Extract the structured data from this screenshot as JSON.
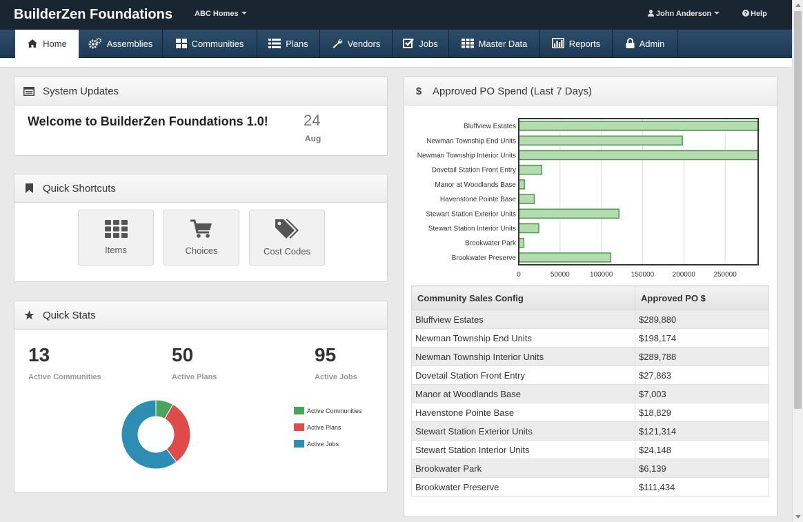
{
  "app": {
    "title": "BuilderZen Foundations"
  },
  "header": {
    "company": "ABC Homes",
    "user": "John Anderson",
    "help": "Help"
  },
  "nav": [
    {
      "label": "Home",
      "icon": "home-icon"
    },
    {
      "label": "Assemblies",
      "icon": "cogs-icon"
    },
    {
      "label": "Communities",
      "icon": "grid-icon"
    },
    {
      "label": "Plans",
      "icon": "list-icon"
    },
    {
      "label": "Vendors",
      "icon": "wrench-icon"
    },
    {
      "label": "Jobs",
      "icon": "check-icon"
    },
    {
      "label": "Master Data",
      "icon": "table-icon"
    },
    {
      "label": "Reports",
      "icon": "bar-chart-icon"
    },
    {
      "label": "Admin",
      "icon": "lock-icon"
    }
  ],
  "system_updates": {
    "title": "System Updates",
    "message": "Welcome to BuilderZen Foundations 1.0!",
    "day": "24",
    "month": "Aug"
  },
  "shortcuts": {
    "title": "Quick Shortcuts",
    "items": [
      {
        "label": "Items",
        "icon": "grid-icon"
      },
      {
        "label": "Choices",
        "icon": "cart-icon"
      },
      {
        "label": "Cost Codes",
        "icon": "tags-icon"
      }
    ]
  },
  "stats": {
    "title": "Quick Stats",
    "items": [
      {
        "value": "13",
        "label": "Active Communities",
        "color": "#4aa55a"
      },
      {
        "value": "50",
        "label": "Active Plans",
        "color": "#de4b4b"
      },
      {
        "value": "95",
        "label": "Active Jobs",
        "color": "#2d8db3"
      }
    ]
  },
  "po_panel": {
    "title": "Approved PO Spend (Last 7 Days)"
  },
  "chart_data": {
    "type": "bar",
    "orientation": "horizontal",
    "categories": [
      "Bluffview Estates",
      "Newman Township End Units",
      "Newman Township Interior Units",
      "Dovetail Station Front Entry",
      "Manor at Woodlands Base",
      "Havenstone Pointe Base",
      "Stewart Station Exterior Units",
      "Stewart Station Interior Units",
      "Brookwater Park",
      "Brookwater Preserve"
    ],
    "values": [
      289880,
      198174,
      289788,
      27863,
      7003,
      18829,
      121314,
      24148,
      6139,
      111434
    ],
    "xlim": [
      0,
      290000
    ],
    "xticks": [
      "0",
      "50000",
      "100000",
      "150000",
      "200000",
      "250000"
    ],
    "grid": true,
    "bar_color": "#b5dcb1",
    "bar_border": "#4b9a4b"
  },
  "po_table": {
    "headers": [
      "Community Sales Config",
      "Approved PO $"
    ],
    "rows": [
      [
        "Bluffview Estates",
        "$289,880"
      ],
      [
        "Newman Township End Units",
        "$198,174"
      ],
      [
        "Newman Township Interior Units",
        "$289,788"
      ],
      [
        "Dovetail Station Front Entry",
        "$27,863"
      ],
      [
        "Manor at Woodlands Base",
        "$7,003"
      ],
      [
        "Havenstone Pointe Base",
        "$18,829"
      ],
      [
        "Stewart Station Exterior Units",
        "$121,314"
      ],
      [
        "Stewart Station Interior Units",
        "$24,148"
      ],
      [
        "Brookwater Park",
        "$6,139"
      ],
      [
        "Brookwater Preserve",
        "$111,434"
      ]
    ]
  }
}
